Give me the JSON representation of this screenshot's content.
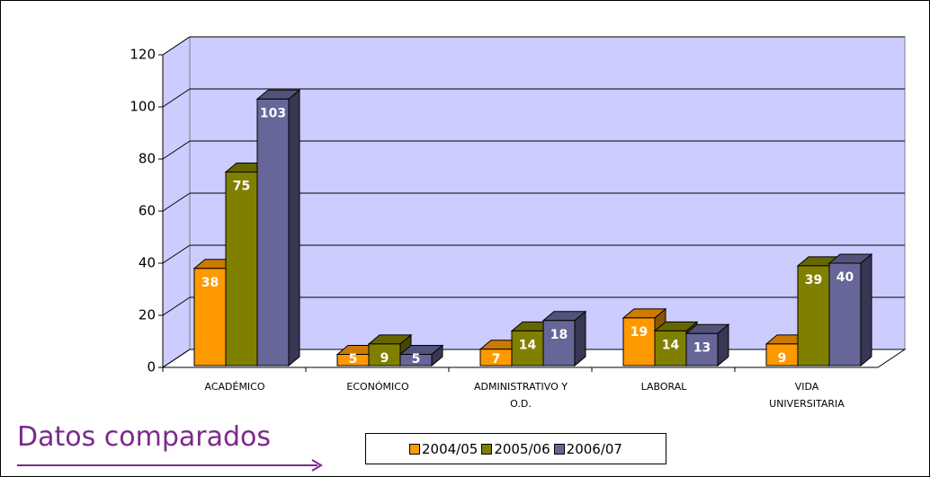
{
  "chart_data": {
    "type": "bar3d",
    "title": "Datos comparados",
    "categories": [
      "ACADÉMICO",
      "ECONÓMICO",
      "ADMINISTRATIVO Y\nO.D.",
      "LABORAL",
      "VIDA\nUNIVERSITARIA"
    ],
    "series": [
      {
        "name": "2004/05",
        "color": "#FF9900",
        "values": [
          38,
          5,
          7,
          19,
          9
        ]
      },
      {
        "name": "2005/06",
        "color": "#808000",
        "values": [
          75,
          9,
          14,
          14,
          39
        ]
      },
      {
        "name": "2006/07",
        "color": "#666699",
        "values": [
          103,
          5,
          18,
          13,
          40
        ]
      }
    ],
    "value_labels_shown_for": [
      [
        0,
        0
      ],
      [
        0,
        2
      ],
      [
        0,
        3
      ],
      [
        0,
        4
      ]
    ],
    "ylim": [
      0,
      120
    ],
    "yticks": [
      0,
      20,
      40,
      60,
      80,
      100,
      120
    ],
    "grid": true,
    "legend": "bottom"
  }
}
